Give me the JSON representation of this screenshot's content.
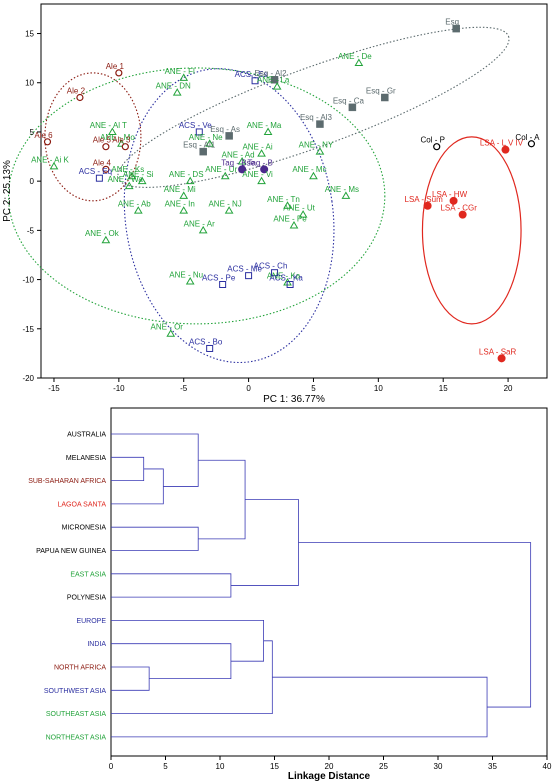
{
  "colors": {
    "ANE": "#22a33a",
    "ACS": "#2b2fa0",
    "Esq": "#5c6b6e",
    "LSA": "#e0281f",
    "Ale": "#8b1a10",
    "Col": "#000000",
    "Tag": "#4b2a8c",
    "black": "#000000",
    "dendro": "#3b3bb5",
    "red_label": "#e0281f",
    "brown_label": "#8b1a10",
    "green_label": "#22a33a",
    "blue_label": "#2b2fa0"
  },
  "chart_data": [
    {
      "type": "scatter",
      "xlabel": "PC 1: 36.77%",
      "ylabel": "PC 2: 25.13%",
      "xlim": [
        -16,
        23
      ],
      "ylim": [
        -20,
        18
      ],
      "xticks": [
        "-15",
        "-10",
        "-5",
        "0",
        "5",
        "10",
        "15",
        "20"
      ],
      "yticks": [
        "-20",
        "-15",
        "-10",
        "-5",
        "0",
        "5",
        "10",
        "15"
      ],
      "points": [
        {
          "label": "Esq",
          "x": 16.0,
          "y": 15.5,
          "group": "Esq",
          "shape": "square-filled"
        },
        {
          "label": "ANE - De",
          "x": 8.5,
          "y": 12.0,
          "group": "ANE",
          "shape": "triangle"
        },
        {
          "label": "Ale 1",
          "x": -10.0,
          "y": 11.0,
          "group": "Ale",
          "shape": "circle-open"
        },
        {
          "label": "ANE - Fl",
          "x": -5.0,
          "y": 10.5,
          "group": "ANE",
          "shape": "triangle"
        },
        {
          "label": "ACS - Es",
          "x": 0.5,
          "y": 10.2,
          "group": "ACS",
          "shape": "square-open"
        },
        {
          "label": "Esq - Al2",
          "x": 2.0,
          "y": 10.3,
          "group": "Esq",
          "shape": "square-filled"
        },
        {
          "label": "ANE - La",
          "x": 2.2,
          "y": 9.6,
          "group": "ANE",
          "shape": "triangle"
        },
        {
          "label": "ANE - DN",
          "x": -5.5,
          "y": 9.0,
          "group": "ANE",
          "shape": "triangle"
        },
        {
          "label": "Ale 2",
          "x": -13.0,
          "y": 8.5,
          "group": "Ale",
          "shape": "circle-open"
        },
        {
          "label": "Esq - Gr",
          "x": 10.5,
          "y": 8.5,
          "group": "Esq",
          "shape": "square-filled"
        },
        {
          "label": "Esq - Ca",
          "x": 8.0,
          "y": 7.5,
          "group": "Esq",
          "shape": "square-filled"
        },
        {
          "label": "Esq - Al3",
          "x": 5.5,
          "y": 5.8,
          "group": "Esq",
          "shape": "square-filled"
        },
        {
          "label": "ACS - Ve",
          "x": -3.8,
          "y": 5.0,
          "group": "ACS",
          "shape": "square-open"
        },
        {
          "label": "ANE - Ma",
          "x": 1.5,
          "y": 5.0,
          "group": "ANE",
          "shape": "triangle"
        },
        {
          "label": "ANE - Al T",
          "x": -10.5,
          "y": 5.0,
          "group": "ANE",
          "shape": "triangle"
        },
        {
          "label": "Esq - As",
          "x": -1.5,
          "y": 4.6,
          "group": "Esq",
          "shape": "square-filled"
        },
        {
          "label": "ANE - Mo",
          "x": -9.8,
          "y": 3.8,
          "group": "ANE",
          "shape": "triangle"
        },
        {
          "label": "Ale 6",
          "x": -15.5,
          "y": 4.0,
          "group": "Ale",
          "shape": "circle-open"
        },
        {
          "label": "Ale 5",
          "x": -11.0,
          "y": 3.5,
          "group": "Ale",
          "shape": "circle-open"
        },
        {
          "label": "Ale 3",
          "x": -9.5,
          "y": 3.5,
          "group": "Ale",
          "shape": "circle-open"
        },
        {
          "label": "ANE - Ne",
          "x": -3.0,
          "y": 3.8,
          "group": "ANE",
          "shape": "triangle"
        },
        {
          "label": "Esq - Al1",
          "x": -3.5,
          "y": 3.0,
          "group": "Esq",
          "shape": "square-filled"
        },
        {
          "label": "Col - P",
          "x": 14.5,
          "y": 3.5,
          "group": "Col",
          "shape": "circle-open"
        },
        {
          "label": "LSA - L V IV",
          "x": 19.8,
          "y": 3.2,
          "group": "LSA",
          "shape": "circle-filled"
        },
        {
          "label": "Col - A",
          "x": 21.8,
          "y": 3.8,
          "group": "Col",
          "shape": "circle-open"
        },
        {
          "label": "ANE - NY",
          "x": 5.5,
          "y": 3.0,
          "group": "ANE",
          "shape": "triangle"
        },
        {
          "label": "ANE - Ai",
          "x": 1.0,
          "y": 2.8,
          "group": "ANE",
          "shape": "triangle"
        },
        {
          "label": "ANE - Ad",
          "x": -0.5,
          "y": 2.0,
          "group": "ANE",
          "shape": "triangle"
        },
        {
          "label": "ANE - Ai K",
          "x": -15.0,
          "y": 1.5,
          "group": "ANE",
          "shape": "triangle"
        },
        {
          "label": "Tag - Bse",
          "x": -0.5,
          "y": 1.2,
          "group": "Tag",
          "shape": "circle-filled"
        },
        {
          "label": "Tag - B",
          "x": 1.2,
          "y": 1.2,
          "group": "Tag",
          "shape": "circle-filled"
        },
        {
          "label": "Ale 4",
          "x": -11.0,
          "y": 1.2,
          "group": "Ale",
          "shape": "circle-open"
        },
        {
          "label": "ACS - Eq",
          "x": -11.5,
          "y": 0.3,
          "group": "ACS",
          "shape": "square-open"
        },
        {
          "label": "ANE - Ks",
          "x": -9.0,
          "y": 0.5,
          "group": "ANE",
          "shape": "triangle"
        },
        {
          "label": "ANE - Ur",
          "x": -1.8,
          "y": 0.5,
          "group": "ANE",
          "shape": "triangle"
        },
        {
          "label": "ANE - Vi",
          "x": 1.0,
          "y": 0.0,
          "group": "ANE",
          "shape": "triangle"
        },
        {
          "label": "ANE - Mc",
          "x": 5.0,
          "y": 0.5,
          "group": "ANE",
          "shape": "triangle"
        },
        {
          "label": "ANE - Wa",
          "x": -9.2,
          "y": -0.5,
          "group": "ANE",
          "shape": "triangle"
        },
        {
          "label": "ANE - Si",
          "x": -8.2,
          "y": 0.0,
          "group": "ANE",
          "shape": "triangle"
        },
        {
          "label": "ANE - DS",
          "x": -4.5,
          "y": 0.0,
          "group": "ANE",
          "shape": "triangle"
        },
        {
          "label": "ANE - Mi",
          "x": -5.0,
          "y": -1.5,
          "group": "ANE",
          "shape": "triangle"
        },
        {
          "label": "ANE - Ms",
          "x": 7.5,
          "y": -1.5,
          "group": "ANE",
          "shape": "triangle"
        },
        {
          "label": "LSA - Sum",
          "x": 13.8,
          "y": -2.5,
          "group": "LSA",
          "shape": "circle-filled"
        },
        {
          "label": "LSA - HW",
          "x": 15.8,
          "y": -2.0,
          "group": "LSA",
          "shape": "circle-filled"
        },
        {
          "label": "LSA - CGr",
          "x": 16.5,
          "y": -3.4,
          "group": "LSA",
          "shape": "circle-filled"
        },
        {
          "label": "ANE - Tn",
          "x": 3.0,
          "y": -2.5,
          "group": "ANE",
          "shape": "triangle"
        },
        {
          "label": "ANE - Ab",
          "x": -8.5,
          "y": -3.0,
          "group": "ANE",
          "shape": "triangle"
        },
        {
          "label": "ANE - In",
          "x": -5.0,
          "y": -3.0,
          "group": "ANE",
          "shape": "triangle"
        },
        {
          "label": "ANE - NJ",
          "x": -1.5,
          "y": -3.0,
          "group": "ANE",
          "shape": "triangle"
        },
        {
          "label": "ANE - Ut",
          "x": 4.2,
          "y": -3.4,
          "group": "ANE",
          "shape": "triangle"
        },
        {
          "label": "ANE - Pe",
          "x": 3.5,
          "y": -4.5,
          "group": "ANE",
          "shape": "triangle"
        },
        {
          "label": "ANE - Ar",
          "x": -3.5,
          "y": -5.0,
          "group": "ANE",
          "shape": "triangle"
        },
        {
          "label": "ANE - Ok",
          "x": -11.0,
          "y": -6.0,
          "group": "ANE",
          "shape": "triangle"
        },
        {
          "label": "ACS - Ch",
          "x": 2.0,
          "y": -9.3,
          "group": "ACS",
          "shape": "square-open"
        },
        {
          "label": "ACS - Me",
          "x": 0.0,
          "y": -9.6,
          "group": "ACS",
          "shape": "square-open"
        },
        {
          "label": "ANE - Nu",
          "x": -4.5,
          "y": -10.2,
          "group": "ANE",
          "shape": "triangle"
        },
        {
          "label": "ACS - Pe",
          "x": -2.0,
          "y": -10.5,
          "group": "ACS",
          "shape": "square-open"
        },
        {
          "label": "ANE - Ka",
          "x": 3.0,
          "y": -10.3,
          "group": "ANE",
          "shape": "triangle"
        },
        {
          "label": "ACS - Ka",
          "x": 3.2,
          "y": -10.5,
          "group": "ACS",
          "shape": "square-open"
        },
        {
          "label": "LSA - SaR",
          "x": 19.5,
          "y": -18.0,
          "group": "LSA",
          "shape": "circle-filled"
        },
        {
          "label": "ANE - Or",
          "x": -6.0,
          "y": -15.5,
          "group": "ANE",
          "shape": "triangle"
        },
        {
          "label": "ACS - Bo",
          "x": -3.0,
          "y": -17.0,
          "group": "ACS",
          "shape": "square-open"
        }
      ],
      "ellipses": [
        {
          "group": "ANE",
          "cx": -4.0,
          "cy": -1.5,
          "rx": 14.5,
          "ry": 13.0,
          "rotate": 0,
          "style": "dotted"
        },
        {
          "group": "ACS",
          "cx": -1.5,
          "cy": -3.5,
          "rx": 8.0,
          "ry": 15.0,
          "rotate": -8,
          "style": "dotted"
        },
        {
          "group": "Esq",
          "cx": 5.0,
          "cy": 7.5,
          "rx": 16.0,
          "ry": 4.0,
          "rotate": -20,
          "style": "dotted"
        },
        {
          "group": "Ale",
          "cx": -12.0,
          "cy": 4.5,
          "rx": 3.7,
          "ry": 6.5,
          "rotate": 0,
          "style": "dotted"
        },
        {
          "group": "LSA",
          "cx": 17.2,
          "cy": -5.0,
          "rx": 3.8,
          "ry": 9.5,
          "rotate": 0,
          "style": "solid"
        }
      ]
    },
    {
      "type": "dendrogram",
      "xlabel": "Linkage Distance",
      "xlim": [
        0,
        40
      ],
      "xticks": [
        "0",
        "5",
        "10",
        "15",
        "20",
        "25",
        "30",
        "35",
        "40"
      ],
      "leaves": [
        {
          "label": "AUSTRALIA",
          "color": "black"
        },
        {
          "label": "MELANESIA",
          "color": "black"
        },
        {
          "label": "SUB-SAHARAN AFRICA",
          "color": "brown_label"
        },
        {
          "label": "LAGOA SANTA",
          "color": "red_label"
        },
        {
          "label": "MICRONESIA",
          "color": "black"
        },
        {
          "label": "PAPUA NEW GUINEA",
          "color": "black"
        },
        {
          "label": "EAST ASIA",
          "color": "green_label"
        },
        {
          "label": "POLYNESIA",
          "color": "black"
        },
        {
          "label": "EUROPE",
          "color": "blue_label"
        },
        {
          "label": "INDIA",
          "color": "blue_label"
        },
        {
          "label": "NORTH AFRICA",
          "color": "brown_label"
        },
        {
          "label": "SOUTHWEST ASIA",
          "color": "blue_label"
        },
        {
          "label": "SOUTHEAST ASIA",
          "color": "green_label"
        },
        {
          "label": "NORTHEAST ASIA",
          "color": "green_label"
        }
      ],
      "merges": [
        {
          "a": 1,
          "b": 2,
          "height": 3.0
        },
        {
          "a": "m0",
          "b": 3,
          "height": 4.8
        },
        {
          "a": 0,
          "b": "m1",
          "height": 8.0
        },
        {
          "a": 4,
          "b": 5,
          "height": 8.0
        },
        {
          "a": "m2",
          "b": "m3",
          "height": 12.3
        },
        {
          "a": 6,
          "b": 7,
          "height": 11.0
        },
        {
          "a": "m4",
          "b": "m5",
          "height": 17.2
        },
        {
          "a": 10,
          "b": 11,
          "height": 3.5
        },
        {
          "a": 9,
          "b": "m7",
          "height": 11.0
        },
        {
          "a": 8,
          "b": "m8",
          "height": 14.0
        },
        {
          "a": "m9",
          "b": 12,
          "height": 14.8
        },
        {
          "a": "m10",
          "b": 13,
          "height": 34.5
        },
        {
          "a": "m6",
          "b": "m11",
          "height": 38.5
        }
      ]
    }
  ]
}
